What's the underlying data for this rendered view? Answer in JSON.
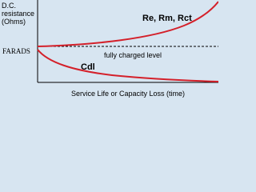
{
  "y_axis_top_label": [
    "D.C.",
    "resistance",
    "(Ohms)"
  ],
  "y_axis_bottom_label": "FARADS",
  "upper_curve_label": "Re, Rm, Rct",
  "reference_label": "fully charged level",
  "lower_curve_label": "Cdl",
  "x_axis_label": "Service Life or Capacity Loss (time)"
}
